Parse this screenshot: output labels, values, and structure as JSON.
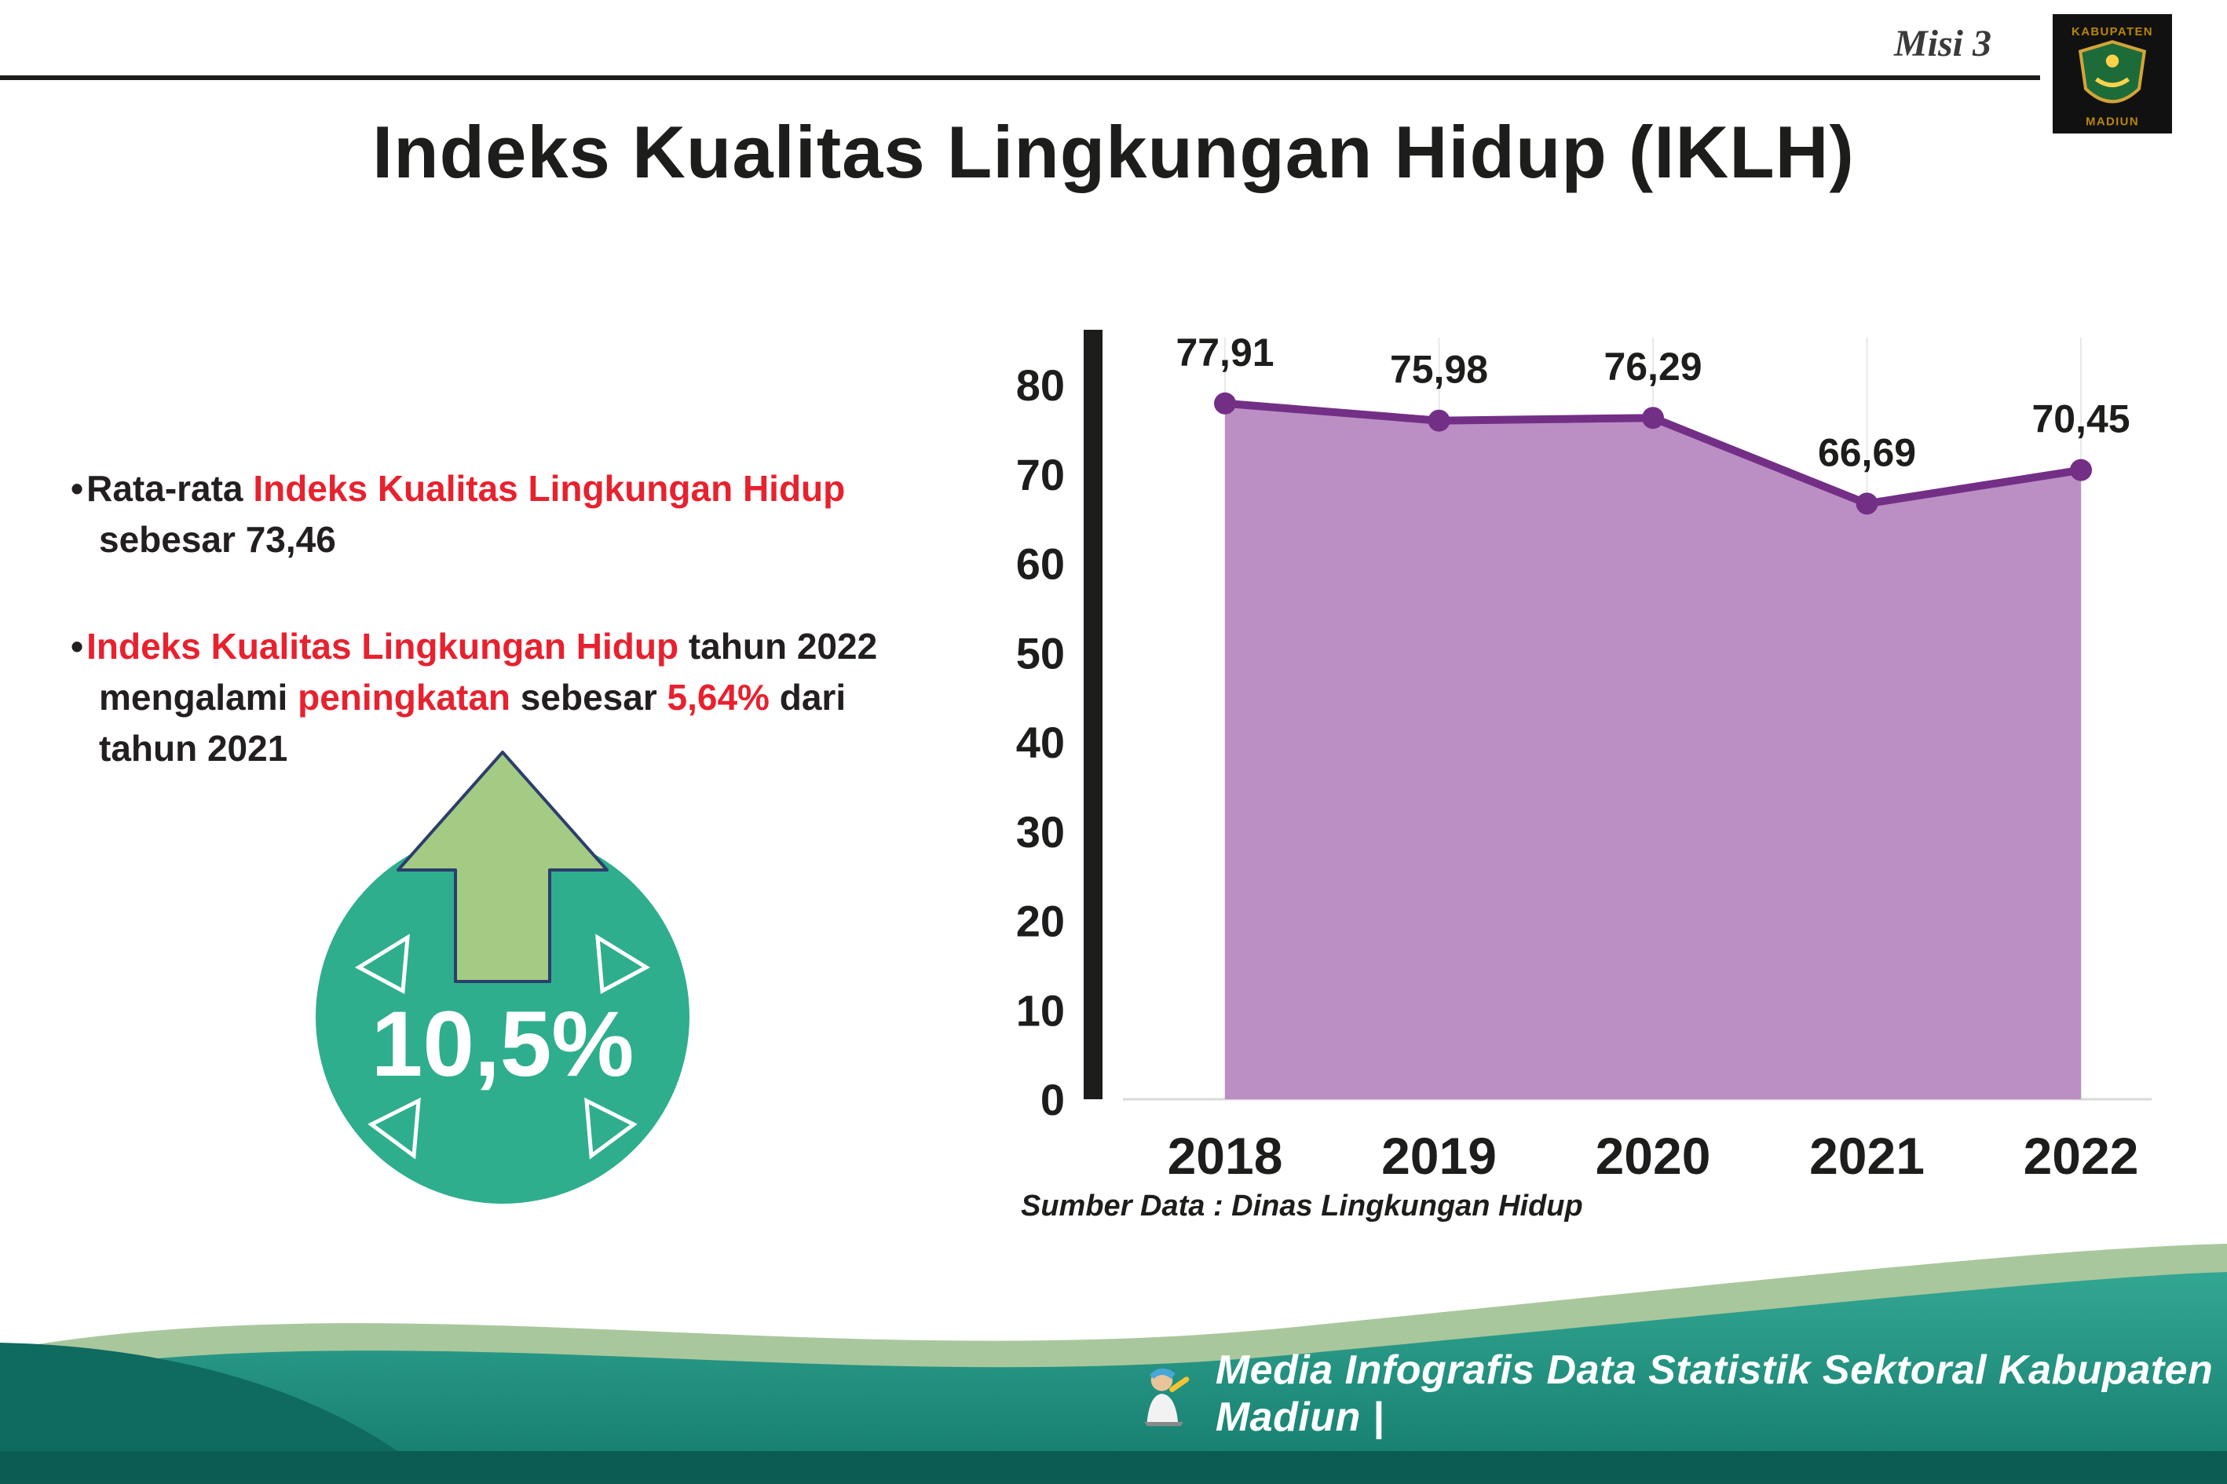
{
  "header": {
    "misi": "Misi 3",
    "title": "Indeks Kualitas Lingkungan Hidup (IKLH)"
  },
  "logo": {
    "top_text": "KABUPATEN",
    "bottom_text": "MADIUN"
  },
  "bullets": {
    "b1": {
      "pre": "Rata-rata ",
      "highlight": "Indeks Kualitas Lingkungan Hidup",
      "post": " sebesar 73,46"
    },
    "b2": {
      "h1": "Indeks Kualitas Lingkungan Hidup",
      "t1": " tahun 2022 mengalami ",
      "h2": "peningkatan",
      "t2": " sebesar ",
      "h3": "5,64%",
      "t3": " dari tahun 2021"
    }
  },
  "badge": {
    "value": "10,5%"
  },
  "chart_data": {
    "type": "area",
    "title": "",
    "categories": [
      "2018",
      "2019",
      "2020",
      "2021",
      "2022"
    ],
    "values": [
      77.91,
      75.98,
      76.29,
      66.69,
      70.45
    ],
    "value_labels": [
      "77,91",
      "75,98",
      "76,29",
      "66,69",
      "70,45"
    ],
    "xlabel": "",
    "ylabel": "",
    "ylim": [
      0,
      80
    ],
    "ytick_step": 10,
    "grid": true,
    "legend": false,
    "source": "Sumber Data : Dinas Lingkungan Hidup",
    "colors": {
      "area": "#bb8fc4",
      "line": "#732f86",
      "point": "#732f86",
      "axis": "#1d1d1b",
      "accent_red": "#e8212e",
      "badge_teal": "#2fae8e",
      "arrow_green": "#a3cb83"
    }
  },
  "footer": {
    "credit": "Media Infografis Data Statistik Sektoral Kabupaten Madiun |"
  }
}
